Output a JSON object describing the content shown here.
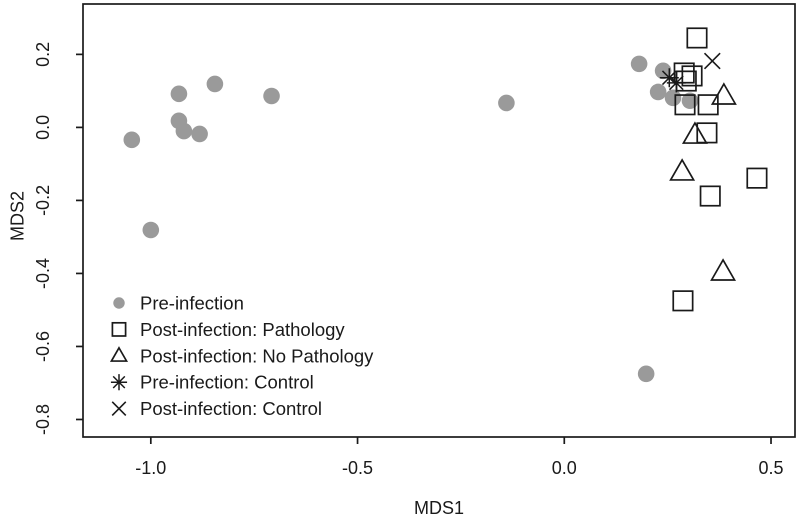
{
  "chart_data": {
    "type": "scatter",
    "title": "",
    "xlabel": "MDS1",
    "ylabel": "MDS2",
    "xlim": [
      -1.164,
      0.558
    ],
    "ylim": [
      -0.848,
      0.338
    ],
    "x_ticks": [
      -1.0,
      -0.5,
      0.0,
      0.5
    ],
    "x_tick_labels": [
      "-1.0",
      "-0.5",
      "0.0",
      "0.5"
    ],
    "y_ticks": [
      0.2,
      0.0,
      -0.2,
      -0.4,
      -0.6,
      -0.8
    ],
    "y_tick_labels": [
      "0.2",
      "0.0",
      "-0.2",
      "-0.4",
      "-0.6",
      "-0.8"
    ],
    "grid": false,
    "legend_position": "inside-bottom-left",
    "colors": {
      "pre_infection_gray": "#9a9a9a",
      "marker_black": "#1a1a1a",
      "background": "#ffffff"
    },
    "series": [
      {
        "name": "Pre-infection",
        "marker": "filled-circle",
        "color": "#9a9a9a",
        "points": [
          [
            -1.046,
            -0.034
          ],
          [
            -1.0,
            -0.281
          ],
          [
            -0.932,
            0.092
          ],
          [
            -0.932,
            0.018
          ],
          [
            -0.92,
            -0.01
          ],
          [
            -0.882,
            -0.018
          ],
          [
            -0.845,
            0.119
          ],
          [
            -0.708,
            0.086
          ],
          [
            -0.14,
            0.067
          ],
          [
            0.181,
            0.174
          ],
          [
            0.198,
            -0.675
          ],
          [
            0.227,
            0.097
          ],
          [
            0.239,
            0.155
          ],
          [
            0.263,
            0.081
          ],
          [
            0.304,
            0.073
          ]
        ]
      },
      {
        "name": "Post-infection: Pathology",
        "marker": "open-square",
        "color": "#1a1a1a",
        "points": [
          [
            0.29,
            0.149
          ],
          [
            0.309,
            0.141
          ],
          [
            0.295,
            0.127
          ],
          [
            0.321,
            0.245
          ],
          [
            0.292,
            0.062
          ],
          [
            0.348,
            0.062
          ],
          [
            0.345,
            -0.015
          ],
          [
            0.466,
            -0.139
          ],
          [
            0.353,
            -0.188
          ],
          [
            0.287,
            -0.475
          ]
        ]
      },
      {
        "name": "Post-infection: No Pathology",
        "marker": "open-triangle",
        "color": "#1a1a1a",
        "points": [
          [
            0.386,
            0.086
          ],
          [
            0.316,
            -0.021
          ],
          [
            0.285,
            -0.122
          ],
          [
            0.384,
            -0.396
          ]
        ]
      },
      {
        "name": "Pre-infection: Control",
        "marker": "asterisk",
        "color": "#1a1a1a",
        "points": [
          [
            0.254,
            0.136
          ],
          [
            0.271,
            0.122
          ]
        ]
      },
      {
        "name": "Post-infection: Control",
        "marker": "x-cross",
        "color": "#1a1a1a",
        "points": [
          [
            0.358,
            0.182
          ]
        ]
      }
    ]
  }
}
